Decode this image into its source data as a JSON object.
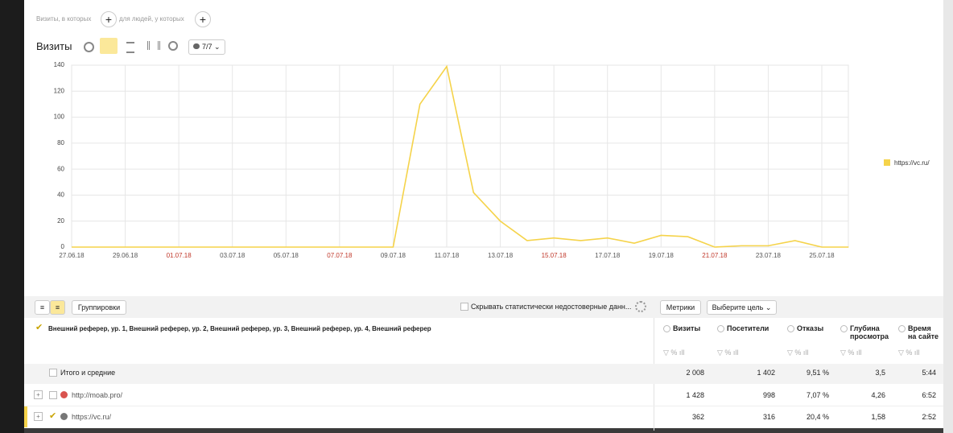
{
  "filters": {
    "visits_label": "Визиты, в которых",
    "people_label": "для людей, у которых"
  },
  "chart_data": {
    "type": "line",
    "title": "Визиты",
    "series_selector": "7/7",
    "categories": [
      "27.06.18",
      null,
      "29.06.18",
      null,
      "01.07.18",
      null,
      "03.07.18",
      null,
      "05.07.18",
      null,
      "07.07.18",
      null,
      "09.07.18",
      null,
      "11.07.18",
      null,
      "13.07.18",
      null,
      "15.07.18",
      null,
      "17.07.18",
      null,
      "19.07.18",
      null,
      "21.07.18",
      null,
      "23.07.18",
      null,
      "25.07.18",
      null
    ],
    "xtick_colors": [
      "#555555",
      null,
      "#555555",
      null,
      "#c0392b",
      null,
      "#555555",
      null,
      "#555555",
      null,
      "#c0392b",
      null,
      "#555555",
      null,
      "#555555",
      null,
      "#555555",
      null,
      "#c0392b",
      null,
      "#555555",
      null,
      "#555555",
      null,
      "#c0392b",
      null,
      "#555555",
      null,
      "#555555",
      null
    ],
    "series": [
      {
        "name": "https://vc.ru/",
        "color": "#f5d34a",
        "values": [
          0,
          0,
          0,
          0,
          0,
          0,
          0,
          0,
          0,
          0,
          0,
          0,
          0,
          110,
          139,
          42,
          20,
          5,
          7,
          5,
          7,
          3,
          9,
          8,
          0,
          1,
          1,
          5,
          0,
          0
        ]
      }
    ],
    "ylim": [
      0,
      140
    ],
    "yticks": [
      0,
      20,
      40,
      60,
      80,
      100,
      120,
      140
    ],
    "grid": true,
    "legend": "right"
  },
  "table": {
    "toolbar": {
      "groupings": "Группировки",
      "hide_unreliable": "Скрывать статистически недостоверные данн...",
      "metrics": "Метрики",
      "goal": "Выберите цель"
    },
    "dimension_header": "Внешний реферер, ур. 1, Внешний реферер, ур. 2, Внешний реферер, ур. 3, Внешний реферер, ур. 4, Внешний реферер",
    "columns": [
      "Визиты",
      "Посетители",
      "Отказы",
      "Глубина просмотра",
      "Время на сайте"
    ],
    "rows": [
      {
        "label": "Итого и средние",
        "cells": [
          "2 008",
          "1 402",
          "9,51 %",
          "3,5",
          "5:44"
        ]
      },
      {
        "label": "http://moab.pro/",
        "cells": [
          "1 428",
          "998",
          "7,07 %",
          "4,26",
          "6:52"
        ]
      },
      {
        "label": "https://vc.ru/",
        "cells": [
          "362",
          "316",
          "20,4 %",
          "1,58",
          "2:52"
        ]
      }
    ]
  }
}
